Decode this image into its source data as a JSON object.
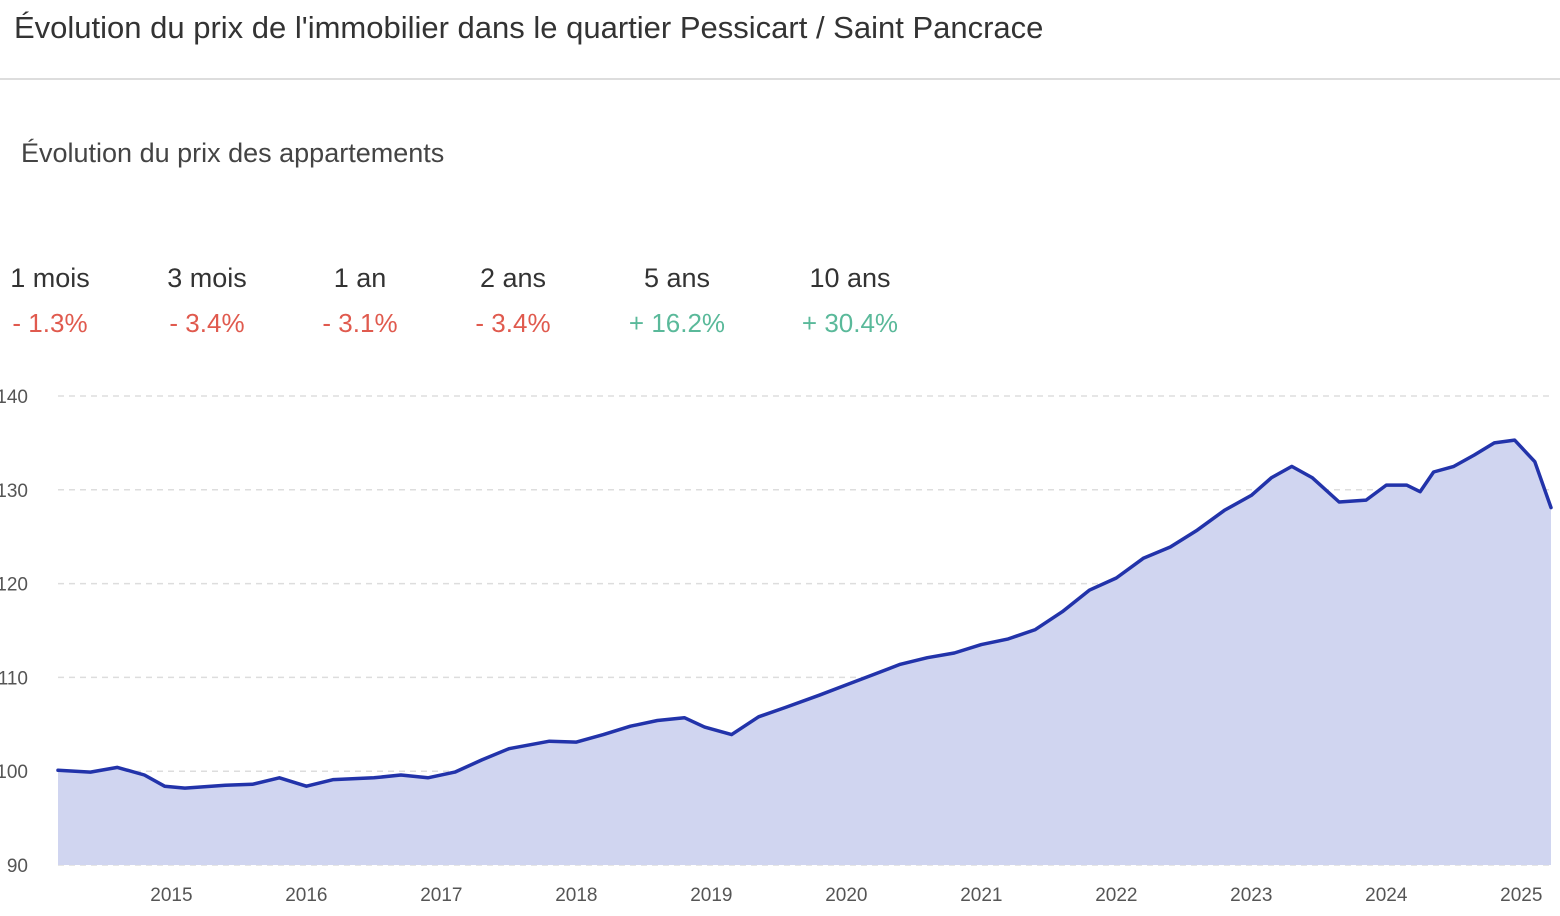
{
  "page_title": "Évolution du prix de l'immobilier dans le quartier Pessicart / Saint Pancrace",
  "stats": [
    {
      "period": "1 mois",
      "change": "- 1.3%",
      "trend": "down"
    },
    {
      "period": "3 mois",
      "change": "- 3.4%",
      "trend": "down"
    },
    {
      "period": "1 an",
      "change": "- 3.1%",
      "trend": "down"
    },
    {
      "period": "2 ans",
      "change": "- 3.4%",
      "trend": "down"
    },
    {
      "period": "5 ans",
      "change": "+ 16.2%",
      "trend": "up"
    },
    {
      "period": "10 ans",
      "change": "+ 30.4%",
      "trend": "up"
    }
  ],
  "chart_data": {
    "type": "area",
    "title": "Évolution du prix des appartements",
    "x": [
      2014.16,
      2014.4,
      2014.6,
      2014.8,
      2014.95,
      2015.1,
      2015.4,
      2015.6,
      2015.8,
      2016.0,
      2016.2,
      2016.5,
      2016.7,
      2016.9,
      2017.1,
      2017.3,
      2017.5,
      2017.8,
      2018.0,
      2018.2,
      2018.4,
      2018.6,
      2018.8,
      2018.95,
      2019.15,
      2019.35,
      2019.55,
      2019.8,
      2020.0,
      2020.2,
      2020.4,
      2020.6,
      2020.8,
      2021.0,
      2021.2,
      2021.4,
      2021.6,
      2021.8,
      2022.0,
      2022.2,
      2022.4,
      2022.6,
      2022.8,
      2023.0,
      2023.15,
      2023.3,
      2023.45,
      2023.65,
      2023.85,
      2024.0,
      2024.15,
      2024.25,
      2024.35,
      2024.5,
      2024.65,
      2024.8,
      2024.95,
      2025.1,
      2025.22
    ],
    "series": [
      {
        "name": "Appartements",
        "color": "#2233aa",
        "fill": "#d0d5f0",
        "values": [
          100.1,
          99.9,
          100.4,
          99.6,
          98.4,
          98.2,
          98.5,
          98.6,
          99.3,
          98.4,
          99.1,
          99.3,
          99.6,
          99.3,
          99.9,
          101.2,
          102.4,
          103.2,
          103.1,
          103.9,
          104.8,
          105.4,
          105.7,
          104.7,
          103.9,
          105.8,
          106.8,
          108.1,
          109.2,
          110.3,
          111.4,
          112.1,
          112.6,
          113.5,
          114.1,
          115.1,
          117.0,
          119.3,
          120.6,
          122.7,
          123.9,
          125.7,
          127.8,
          129.4,
          131.3,
          132.5,
          131.3,
          128.7,
          128.9,
          130.5,
          130.5,
          129.8,
          131.9,
          132.5,
          133.7,
          135.0,
          135.3,
          133.0,
          128.1
        ]
      }
    ],
    "xlim": [
      2014.16,
      2025.22
    ],
    "xticks": [
      2015,
      2016,
      2017,
      2018,
      2019,
      2020,
      2021,
      2022,
      2023,
      2024,
      2025
    ],
    "ylim": [
      90,
      140
    ],
    "yticks": [
      90,
      100,
      110,
      120,
      130,
      140
    ],
    "grid": true
  }
}
